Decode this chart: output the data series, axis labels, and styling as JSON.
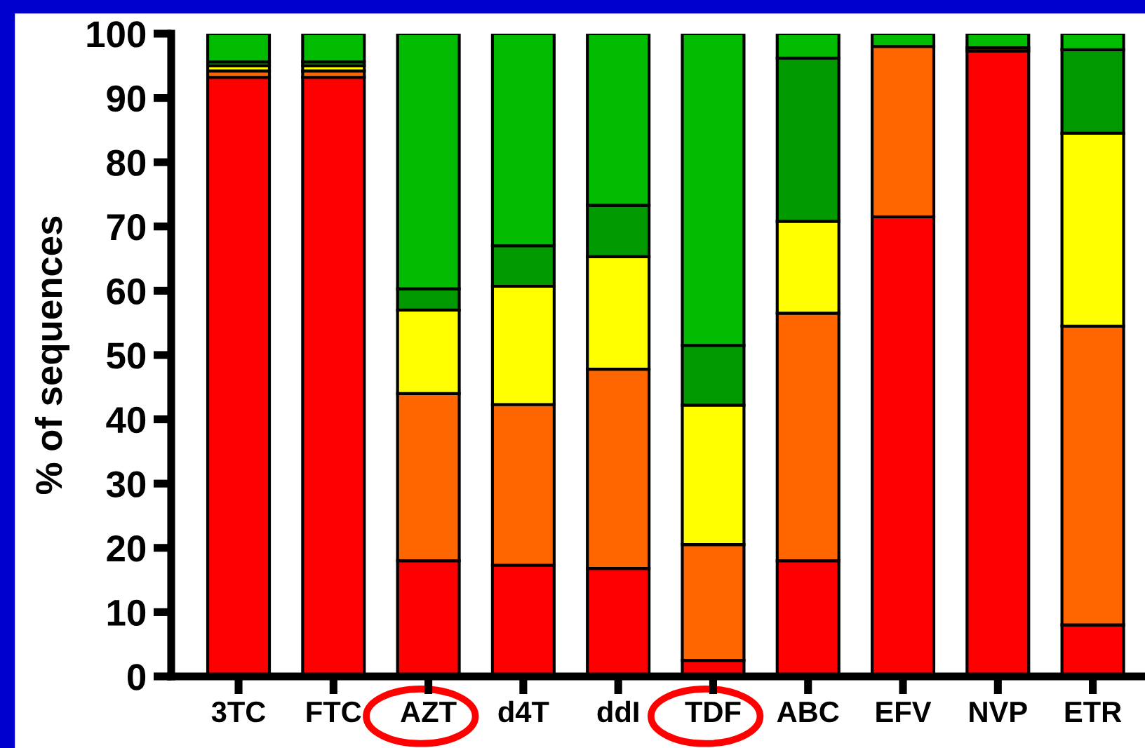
{
  "chart_data": {
    "type": "bar",
    "stacked": true,
    "ylabel": "% of sequences",
    "categories": [
      "3TC",
      "FTC",
      "AZT",
      "d4T",
      "ddI",
      "TDF",
      "ABC",
      "EFV",
      "NVP",
      "ETR"
    ],
    "series": [
      {
        "color": "#ff0000",
        "values": [
          93.2,
          93.2,
          18,
          17.3,
          16.8,
          2.5,
          18,
          71.5,
          97.3,
          8
        ]
      },
      {
        "color": "#ff6600",
        "values": [
          1.0,
          1.0,
          26,
          25,
          31,
          18,
          38.5,
          26.5,
          0.5,
          46.5
        ]
      },
      {
        "color": "#ffff00",
        "values": [
          0.8,
          0.8,
          13,
          18.4,
          17.5,
          21.7,
          14.3,
          0,
          0,
          30
        ]
      },
      {
        "color": "#009a00",
        "values": [
          0.6,
          0.6,
          3.3,
          6.3,
          8,
          9.3,
          25.4,
          0,
          0,
          13
        ]
      },
      {
        "color": "#00bb00",
        "values": [
          4.4,
          4.4,
          39.7,
          33,
          26.7,
          48.5,
          3.8,
          2,
          2.2,
          2.5
        ]
      }
    ],
    "ylim": [
      0,
      100
    ],
    "yticks": [
      0,
      10,
      20,
      30,
      40,
      50,
      60,
      70,
      80,
      90,
      100
    ],
    "grid": false
  }
}
